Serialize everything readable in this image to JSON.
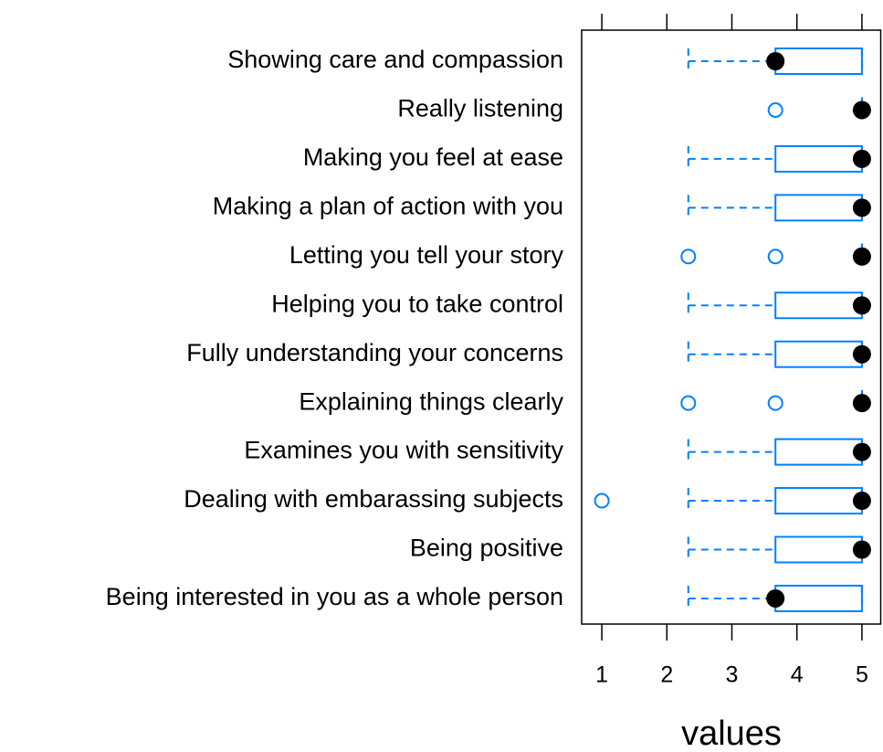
{
  "chart_data": {
    "type": "box",
    "x_label": "values",
    "color": "#0080ff",
    "categories": [
      "Showing care and compassion",
      "Really listening",
      "Making you feel at ease",
      "Making a plan of action with you",
      "Letting you tell your story",
      "Helping you to take control",
      "Fully understanding your concerns",
      "Explaining things clearly",
      "Examines you with sensitivity",
      "Dealing with embarassing subjects",
      "Being positive",
      "Being interested in you as a whole person"
    ],
    "boxes": [
      {
        "min": 2.33,
        "q1": 3.67,
        "median": 3.67,
        "q3": 5,
        "max": 5,
        "outliers": []
      },
      {
        "min": 5,
        "q1": 5,
        "median": 5,
        "q3": 5,
        "max": 5,
        "outliers": [
          3.67
        ]
      },
      {
        "min": 2.33,
        "q1": 3.67,
        "median": 5,
        "q3": 5,
        "max": 5,
        "outliers": []
      },
      {
        "min": 2.33,
        "q1": 3.67,
        "median": 5,
        "q3": 5,
        "max": 5,
        "outliers": []
      },
      {
        "min": 5,
        "q1": 5,
        "median": 5,
        "q3": 5,
        "max": 5,
        "outliers": [
          2.33,
          3.67
        ]
      },
      {
        "min": 2.33,
        "q1": 3.67,
        "median": 5,
        "q3": 5,
        "max": 5,
        "outliers": []
      },
      {
        "min": 2.33,
        "q1": 3.67,
        "median": 5,
        "q3": 5,
        "max": 5,
        "outliers": []
      },
      {
        "min": 5,
        "q1": 5,
        "median": 5,
        "q3": 5,
        "max": 5,
        "outliers": [
          2.33,
          3.67
        ]
      },
      {
        "min": 2.33,
        "q1": 3.67,
        "median": 5,
        "q3": 5,
        "max": 5,
        "outliers": []
      },
      {
        "min": 2.33,
        "q1": 3.67,
        "median": 5,
        "q3": 5,
        "max": 5,
        "outliers": [
          1
        ]
      },
      {
        "min": 2.33,
        "q1": 3.67,
        "median": 5,
        "q3": 5,
        "max": 5,
        "outliers": []
      },
      {
        "min": 2.33,
        "q1": 3.67,
        "median": 3.67,
        "q3": 5,
        "max": 5,
        "outliers": []
      }
    ],
    "xlim": [
      0.69,
      5.31
    ],
    "xticks": [
      1,
      2,
      3,
      4,
      5
    ]
  }
}
